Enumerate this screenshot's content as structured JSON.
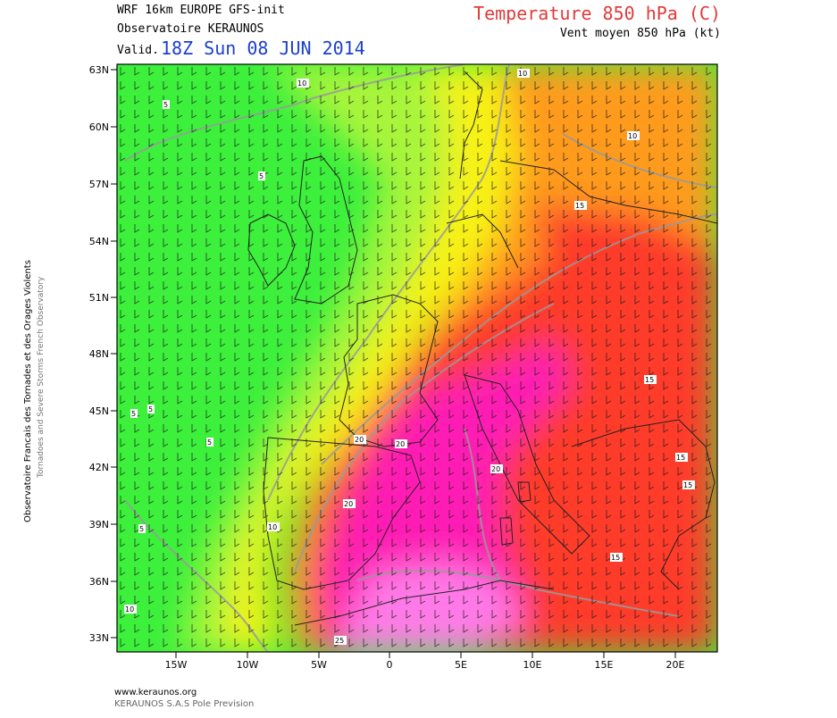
{
  "header": {
    "model_line": "WRF 16km EUROPE  GFS-init",
    "org_line": "Observatoire KERAUNOS",
    "valid_prefix": "Valid.",
    "valid_date": "18Z Sun 08 JUN 2014",
    "field_title": "Temperature 850 hPa (C)",
    "field_subtitle": "Vent moyen 850 hPa (kt)"
  },
  "side_text": {
    "line1": "Observatoire Francais des Tornades et des Orages Violents",
    "line2": "Tornadoes and Severe Storms French Observatory"
  },
  "footer": {
    "url": "www.keraunos.org",
    "credit": "KERAUNOS S.A.S Pole Prevision"
  },
  "map": {
    "lat_ticks": [
      "63N",
      "60N",
      "57N",
      "54N",
      "51N",
      "48N",
      "45N",
      "42N",
      "39N",
      "36N",
      "33N"
    ],
    "lon_ticks": [
      "15W",
      "10W",
      "5W",
      "0",
      "5E",
      "10E",
      "15E",
      "20E"
    ],
    "contour_labels": [
      "10",
      "10",
      "10",
      "5",
      "5",
      "5",
      "5",
      "5",
      "5",
      "15",
      "15",
      "15",
      "15",
      "15",
      "20",
      "20",
      "20",
      "20",
      "25",
      "10",
      "10"
    ],
    "colors": {
      "cold": "#3cf03c",
      "cool": "#a8f53a",
      "mild": "#f7f214",
      "warm": "#ff9b1e",
      "hot": "#ff3b2a",
      "very_hot": "#ff1fb4",
      "extreme": "#ff7ae8"
    }
  }
}
